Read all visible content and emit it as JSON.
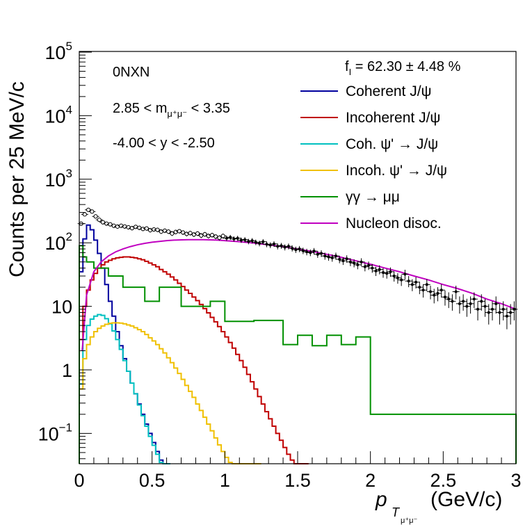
{
  "chart_data": {
    "type": "line",
    "xlabel": "p",
    "xlabel_sub": "T",
    "xlabel_subsub": "μ⁺μ⁻",
    "xlabel_unit": "(GeV/c)",
    "ylabel": "Counts per  25 MeV/c",
    "xlim": [
      0,
      3
    ],
    "ylim": [
      0.025,
      100000
    ],
    "yscale": "log",
    "grid": false,
    "x_ticks": [
      "0",
      "0.5",
      "1",
      "1.5",
      "2",
      "2.5",
      "3"
    ],
    "y_ticks": [
      {
        "base": "10",
        "exp": "−1"
      },
      {
        "base": "1",
        "exp": ""
      },
      {
        "base": "10",
        "exp": ""
      },
      {
        "base": "10",
        "exp": "2"
      },
      {
        "base": "10",
        "exp": "3"
      },
      {
        "base": "10",
        "exp": "4"
      },
      {
        "base": "10",
        "exp": "5"
      }
    ],
    "annotations": {
      "selection": "0NXN",
      "mass_cut_left": "2.85 < m",
      "mass_cut_sub": "μ⁺μ⁻",
      "mass_cut_right": " < 3.35",
      "rapidity_cut": "-4.00 < y < -2.50",
      "fraction_f": "f",
      "fraction_sub": "I",
      "fraction_value": " = 62.30 ± 4.48 %"
    },
    "legend_position": "top-right",
    "series": [
      {
        "name": "Coherent J/ψ",
        "color": "#00009e",
        "step": true,
        "x": [
          0.0125,
          0.0375,
          0.0625,
          0.0875,
          0.1125,
          0.1375,
          0.1625,
          0.1875,
          0.2125,
          0.2375,
          0.2625,
          0.2875,
          0.3125,
          0.3375,
          0.3625,
          0.3875,
          0.4125,
          0.4375,
          0.4625,
          0.4875,
          0.5125,
          0.5375,
          0.5625,
          0.5875,
          0.6125
        ],
        "y": [
          35,
          115,
          190,
          160,
          110,
          68,
          40,
          22,
          12,
          7,
          4,
          2.4,
          1.5,
          0.95,
          0.62,
          0.42,
          0.29,
          0.2,
          0.14,
          0.1,
          0.072,
          0.052,
          0.038,
          0.03,
          0.025
        ]
      },
      {
        "name": "Incoherent J/ψ",
        "color": "#c00000",
        "step": true,
        "x": [
          0.0125,
          0.0375,
          0.0625,
          0.0875,
          0.1125,
          0.1375,
          0.1625,
          0.1875,
          0.2125,
          0.2375,
          0.2625,
          0.2875,
          0.3125,
          0.3375,
          0.3625,
          0.3875,
          0.4125,
          0.4375,
          0.4625,
          0.4875,
          0.5125,
          0.5375,
          0.5625,
          0.5875,
          0.6125,
          0.6375,
          0.6625,
          0.6875,
          0.7125,
          0.7375,
          0.7625,
          0.7875,
          0.8125,
          0.8375,
          0.8625,
          0.8875,
          0.9125,
          0.9375,
          0.9625,
          0.9875,
          1.0125,
          1.0375,
          1.0625,
          1.0875,
          1.1125,
          1.1375,
          1.1625,
          1.1875,
          1.2125,
          1.2375,
          1.2625,
          1.2875,
          1.3125,
          1.3375,
          1.3625,
          1.3875,
          1.4125,
          1.4375,
          1.4625,
          1.4875,
          1.5125,
          1.5375,
          1.5625
        ],
        "y": [
          3,
          10,
          18,
          26,
          33,
          40,
          45,
          50,
          53,
          56,
          58,
          59,
          60,
          60,
          59,
          58,
          56,
          54,
          51,
          48,
          45,
          42,
          38,
          35,
          32,
          29,
          26,
          23,
          20.5,
          18,
          16,
          14,
          12.3,
          10.7,
          9.2,
          7.9,
          6.7,
          5.7,
          4.8,
          4,
          3.3,
          2.7,
          2.2,
          1.75,
          1.4,
          1.1,
          0.85,
          0.65,
          0.5,
          0.38,
          0.29,
          0.22,
          0.17,
          0.13,
          0.1,
          0.078,
          0.06,
          0.047,
          0.038,
          0.031,
          0.027,
          0.025,
          0.024
        ]
      },
      {
        "name": "Coh. ψ' →  J/ψ",
        "color": "#00c0c0",
        "step": true,
        "x": [
          0.0125,
          0.0375,
          0.0625,
          0.0875,
          0.1125,
          0.1375,
          0.1625,
          0.1875,
          0.2125,
          0.2375,
          0.2625,
          0.2875,
          0.3125,
          0.3375,
          0.3625,
          0.3875,
          0.4125,
          0.4375,
          0.4625,
          0.4875,
          0.5125,
          0.5375,
          0.5625,
          0.5875,
          0.6125
        ],
        "y": [
          0.6,
          3,
          5,
          6.3,
          7,
          7.4,
          7.2,
          6.4,
          5.3,
          4.1,
          3,
          2.1,
          1.4,
          0.95,
          0.62,
          0.42,
          0.28,
          0.19,
          0.13,
          0.09,
          0.065,
          0.047,
          0.035,
          0.028,
          0.025
        ]
      },
      {
        "name": "Incoh. ψ' →  J/ψ",
        "color": "#f0c000",
        "step": true,
        "x": [
          0.0125,
          0.0375,
          0.0625,
          0.0875,
          0.1125,
          0.1375,
          0.1625,
          0.1875,
          0.2125,
          0.2375,
          0.2625,
          0.2875,
          0.3125,
          0.3375,
          0.3625,
          0.3875,
          0.4125,
          0.4375,
          0.4625,
          0.4875,
          0.5125,
          0.5375,
          0.5625,
          0.5875,
          0.6125,
          0.6375,
          0.6625,
          0.6875,
          0.7125,
          0.7375,
          0.7625,
          0.7875,
          0.8125,
          0.8375,
          0.8625,
          0.8875,
          0.9125,
          0.9375,
          0.9625,
          0.9875,
          1.0125,
          1.0375,
          1.0625,
          1.0875,
          1.1125,
          1.1375,
          1.1625,
          1.1875,
          1.2125,
          1.2375
        ],
        "y": [
          0.5,
          1.5,
          2.5,
          3.3,
          4,
          4.5,
          4.9,
          5.2,
          5.4,
          5.5,
          5.5,
          5.45,
          5.3,
          5.1,
          4.9,
          4.6,
          4.3,
          4,
          3.6,
          3.2,
          2.85,
          2.5,
          2.15,
          1.85,
          1.55,
          1.3,
          1.07,
          0.88,
          0.71,
          0.57,
          0.46,
          0.37,
          0.29,
          0.23,
          0.18,
          0.14,
          0.11,
          0.085,
          0.066,
          0.052,
          0.042,
          0.035,
          0.03,
          0.027,
          0.026,
          0.025,
          0.025,
          0.025,
          0.025,
          0.025
        ]
      },
      {
        "name": "γγ → μμ",
        "color": "#009000",
        "step": true,
        "edges": [
          0,
          0.025,
          0.05,
          0.1,
          0.2,
          0.3,
          0.4,
          0.45,
          0.5,
          0.55,
          0.6,
          0.7,
          0.8,
          0.9,
          1.0,
          1.2,
          1.4,
          1.5,
          1.6,
          1.7,
          1.8,
          1.9,
          2.0,
          3.0
        ],
        "y": [
          90,
          60,
          50,
          40,
          30,
          20,
          20,
          12,
          12,
          20,
          20,
          10,
          10,
          12,
          5.8,
          6,
          2.5,
          3.5,
          2.4,
          3.5,
          2.5,
          3.3,
          0.2,
          0.025
        ]
      },
      {
        "name": "Nucleon disoc.",
        "color": "#c000c0",
        "step": false,
        "x": [
          0.02,
          0.05,
          0.1,
          0.15,
          0.2,
          0.25,
          0.3,
          0.35,
          0.4,
          0.45,
          0.5,
          0.55,
          0.6,
          0.65,
          0.7,
          0.75,
          0.8,
          0.85,
          0.9,
          0.95,
          1.0,
          1.1,
          1.2,
          1.3,
          1.4,
          1.5,
          1.6,
          1.7,
          1.8,
          1.9,
          2.0,
          2.1,
          2.2,
          2.3,
          2.4,
          2.5,
          2.6,
          2.7,
          2.8,
          2.9,
          3.0
        ],
        "y": [
          2,
          15,
          35,
          50,
          62,
          72,
          80,
          87,
          93,
          98,
          102,
          105,
          108,
          110,
          111,
          112,
          112,
          112,
          111,
          110,
          108,
          104,
          99,
          93,
          87,
          80,
          73,
          66,
          59,
          52,
          46,
          40,
          35,
          30,
          26,
          22,
          19,
          16,
          13,
          11,
          9
        ]
      },
      {
        "name": "data",
        "color": "#000000",
        "markers": true,
        "legend": false,
        "x": [
          0.0125,
          0.0375,
          0.0625,
          0.0875,
          0.1125,
          0.1375,
          0.1625,
          0.1875,
          0.2125,
          0.2375,
          0.2625,
          0.2875,
          0.3125,
          0.3375,
          0.3625,
          0.3875,
          0.4125,
          0.4375,
          0.4625,
          0.4875,
          0.5125,
          0.5375,
          0.5625,
          0.5875,
          0.6125,
          0.6375,
          0.6625,
          0.6875,
          0.7125,
          0.7375,
          0.7625,
          0.7875,
          0.8125,
          0.8375,
          0.8625,
          0.8875,
          0.9125,
          0.9375,
          0.9625,
          0.9875,
          1.0125,
          1.0375,
          1.0625,
          1.0875,
          1.1125,
          1.1375,
          1.1625,
          1.1875,
          1.2125,
          1.2375,
          1.2625,
          1.2875,
          1.3125,
          1.3375,
          1.3625,
          1.3875,
          1.4125,
          1.4375,
          1.4625,
          1.4875,
          1.5125,
          1.5375,
          1.5625,
          1.5875,
          1.6125,
          1.6375,
          1.6625,
          1.6875,
          1.7125,
          1.7375,
          1.7625,
          1.7875,
          1.8125,
          1.8375,
          1.8625,
          1.8875,
          1.9125,
          1.9375,
          1.9625,
          1.9875,
          2.0125,
          2.0375,
          2.0625,
          2.0875,
          2.1125,
          2.1375,
          2.1625,
          2.1875,
          2.2125,
          2.2375,
          2.2625,
          2.2875,
          2.3125,
          2.3375,
          2.3625,
          2.3875,
          2.4125,
          2.4375,
          2.4625,
          2.4875,
          2.5125,
          2.5375,
          2.5625,
          2.5875,
          2.6125,
          2.6375,
          2.6625,
          2.6875,
          2.7125,
          2.7375,
          2.7625,
          2.7875,
          2.8125,
          2.8375,
          2.8625,
          2.8875,
          2.9125,
          2.9375,
          2.9625,
          2.9875
        ],
        "y": [
          200,
          280,
          330,
          310,
          260,
          230,
          210,
          200,
          195,
          185,
          180,
          185,
          180,
          175,
          170,
          178,
          172,
          165,
          168,
          158,
          162,
          160,
          150,
          155,
          150,
          140,
          148,
          152,
          145,
          138,
          142,
          135,
          140,
          130,
          136,
          128,
          132,
          125,
          120,
          128,
          118,
          122,
          115,
          118,
          110,
          112,
          105,
          108,
          102,
          98,
          104,
          95,
          92,
          96,
          88,
          90,
          85,
          88,
          82,
          78,
          80,
          75,
          72,
          70,
          74,
          66,
          68,
          62,
          60,
          58,
          62,
          55,
          52,
          56,
          50,
          48,
          45,
          50,
          42,
          44,
          40,
          36,
          38,
          34,
          33,
          35,
          30,
          28,
          26,
          32,
          25,
          22,
          24,
          20,
          18,
          22,
          17,
          15,
          16,
          18,
          14,
          13,
          12,
          17,
          11,
          12,
          10,
          11,
          13,
          9,
          12,
          10,
          8,
          9,
          11,
          8,
          9,
          7,
          8,
          9
        ]
      }
    ]
  }
}
